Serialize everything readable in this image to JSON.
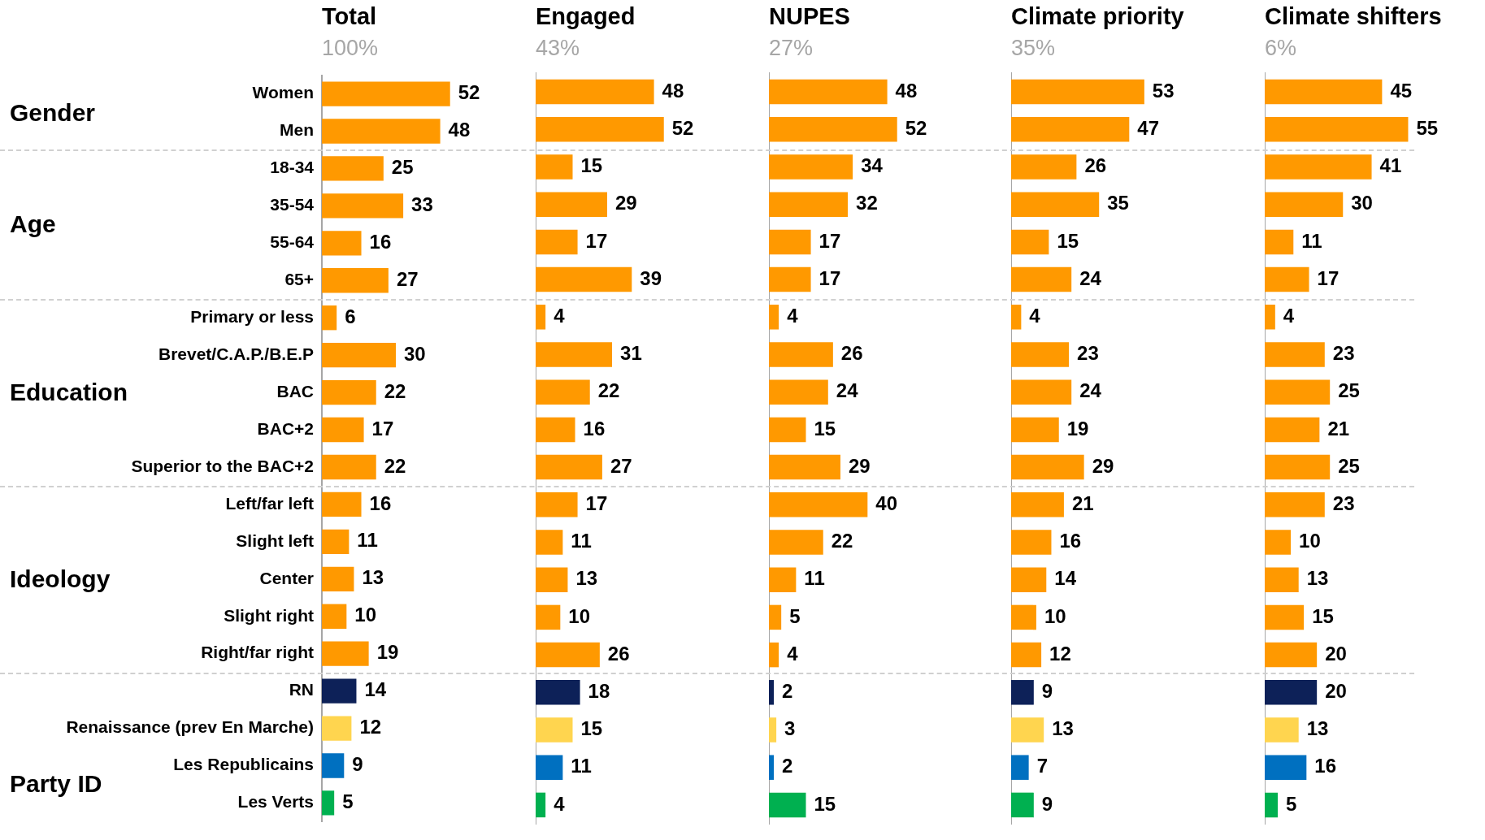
{
  "chart_data": [
    {
      "type": "bar",
      "orientation": "horizontal",
      "title": "Total",
      "subtitle": "100%",
      "tick_labels": "y",
      "data_labels": true,
      "categories": [
        "Women",
        "Men",
        "18-34",
        "35-54",
        "55-64",
        "65+",
        "Primary or less",
        "Brevet/C.A.P./B.E.P",
        "BAC",
        "BAC+2",
        "Superior to the BAC+2",
        "Left/far left",
        "Slight left",
        "Center",
        "Slight right",
        "Right/far right",
        "RN",
        "Renaissance (prev En Marche)",
        "Les Republicains",
        "Les Verts"
      ],
      "values": [
        52,
        48,
        25,
        33,
        16,
        27,
        6,
        30,
        22,
        17,
        22,
        16,
        11,
        13,
        10,
        19,
        14,
        12,
        9,
        5
      ],
      "colors": [
        "#ff9900",
        "#ff9900",
        "#ff9900",
        "#ff9900",
        "#ff9900",
        "#ff9900",
        "#ff9900",
        "#ff9900",
        "#ff9900",
        "#ff9900",
        "#ff9900",
        "#ff9900",
        "#ff9900",
        "#ff9900",
        "#ff9900",
        "#ff9900",
        "#0d2158",
        "#ffd54f",
        "#0070c0",
        "#00b050"
      ],
      "annotations": [
        "Gender",
        "Age",
        "Education",
        "Ideology",
        "Party ID"
      ]
    },
    {
      "type": "bar",
      "orientation": "horizontal",
      "title": "Engaged",
      "subtitle": "43%",
      "tick_labels": false,
      "data_labels": true,
      "categories": [
        null,
        null,
        null,
        null,
        null,
        null,
        null,
        null,
        null,
        null,
        null,
        null,
        null,
        null,
        null,
        null,
        null,
        null,
        null,
        null
      ],
      "values": [
        48,
        52,
        15,
        29,
        17,
        39,
        4,
        31,
        22,
        16,
        27,
        17,
        11,
        13,
        10,
        26,
        18,
        15,
        11,
        4
      ],
      "colors": [
        "#ff9900",
        "#ff9900",
        "#ff9900",
        "#ff9900",
        "#ff9900",
        "#ff9900",
        "#ff9900",
        "#ff9900",
        "#ff9900",
        "#ff9900",
        "#ff9900",
        "#ff9900",
        "#ff9900",
        "#ff9900",
        "#ff9900",
        "#ff9900",
        "#0d2158",
        "#ffd54f",
        "#0070c0",
        "#00b050"
      ]
    },
    {
      "type": "bar",
      "orientation": "horizontal",
      "title": "NUPES",
      "subtitle": "27%",
      "tick_labels": false,
      "data_labels": true,
      "categories": [
        null,
        null,
        null,
        null,
        null,
        null,
        null,
        null,
        null,
        null,
        null,
        null,
        null,
        null,
        null,
        null,
        null,
        null,
        null,
        null
      ],
      "values": [
        48,
        52,
        34,
        32,
        17,
        17,
        4,
        26,
        24,
        15,
        29,
        40,
        22,
        11,
        5,
        4,
        2,
        3,
        2,
        15
      ],
      "colors": [
        "#ff9900",
        "#ff9900",
        "#ff9900",
        "#ff9900",
        "#ff9900",
        "#ff9900",
        "#ff9900",
        "#ff9900",
        "#ff9900",
        "#ff9900",
        "#ff9900",
        "#ff9900",
        "#ff9900",
        "#ff9900",
        "#ff9900",
        "#ff9900",
        "#0d2158",
        "#ffd54f",
        "#0070c0",
        "#00b050"
      ]
    },
    {
      "type": "bar",
      "orientation": "horizontal",
      "title": "Climate priority",
      "subtitle": "35%",
      "tick_labels": false,
      "data_labels": true,
      "categories": [
        null,
        null,
        null,
        null,
        null,
        null,
        null,
        null,
        null,
        null,
        null,
        null,
        null,
        null,
        null,
        null,
        null,
        null,
        null,
        null
      ],
      "values": [
        53,
        47,
        26,
        35,
        15,
        24,
        4,
        23,
        24,
        19,
        29,
        21,
        16,
        14,
        10,
        12,
        9,
        13,
        7,
        9
      ],
      "colors": [
        "#ff9900",
        "#ff9900",
        "#ff9900",
        "#ff9900",
        "#ff9900",
        "#ff9900",
        "#ff9900",
        "#ff9900",
        "#ff9900",
        "#ff9900",
        "#ff9900",
        "#ff9900",
        "#ff9900",
        "#ff9900",
        "#ff9900",
        "#ff9900",
        "#0d2158",
        "#ffd54f",
        "#0070c0",
        "#00b050"
      ]
    },
    {
      "type": "bar",
      "orientation": "horizontal",
      "title": "Climate shifters",
      "subtitle": "6%",
      "tick_labels": false,
      "data_labels": true,
      "categories": [
        null,
        null,
        null,
        null,
        null,
        null,
        null,
        null,
        null,
        null,
        null,
        null,
        null,
        null,
        null,
        null,
        null,
        null,
        null,
        null
      ],
      "values": [
        45,
        55,
        41,
        30,
        11,
        17,
        4,
        23,
        25,
        21,
        25,
        23,
        10,
        13,
        15,
        20,
        20,
        13,
        16,
        5
      ],
      "colors": [
        "#ff9900",
        "#ff9900",
        "#ff9900",
        "#ff9900",
        "#ff9900",
        "#ff9900",
        "#ff9900",
        "#ff9900",
        "#ff9900",
        "#ff9900",
        "#ff9900",
        "#ff9900",
        "#ff9900",
        "#ff9900",
        "#ff9900",
        "#ff9900",
        "#0d2158",
        "#ffd54f",
        "#0070c0",
        "#00b050"
      ]
    }
  ]
}
